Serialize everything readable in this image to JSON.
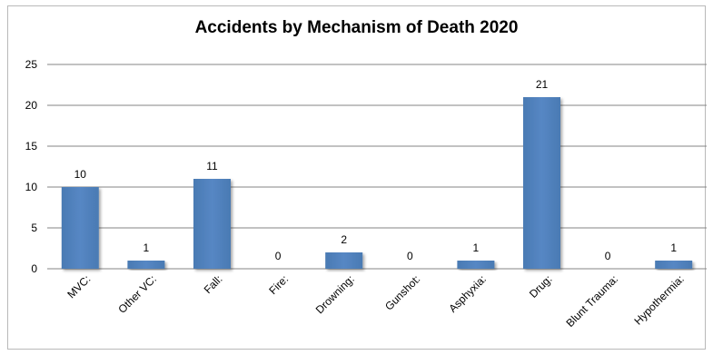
{
  "chart_data": {
    "type": "bar",
    "title": "Accidents by Mechanism of Death 2020",
    "xlabel": "",
    "ylabel": "",
    "categories": [
      "MVC:",
      "Other VC:",
      "Fall:",
      "Fire:",
      "Drowning:",
      "Gunshot:",
      "Asphyxia:",
      "Drug:",
      "Blunt Trauma:",
      "Hypothermia:"
    ],
    "values": [
      10,
      1,
      11,
      0,
      2,
      0,
      1,
      21,
      0,
      1
    ],
    "data_labels": [
      "10",
      "1",
      "11",
      "0",
      "2",
      "0",
      "1",
      "21",
      "0",
      "1"
    ],
    "ylim": [
      0,
      25
    ],
    "yticks": [
      0,
      5,
      10,
      15,
      20,
      25
    ],
    "ytick_labels": [
      "0",
      "5",
      "10",
      "15",
      "20",
      "25"
    ],
    "grid": true,
    "legend": "none",
    "colors": {
      "bar": "#4f81bd",
      "grid": "#868686",
      "axis": "#868686"
    }
  }
}
